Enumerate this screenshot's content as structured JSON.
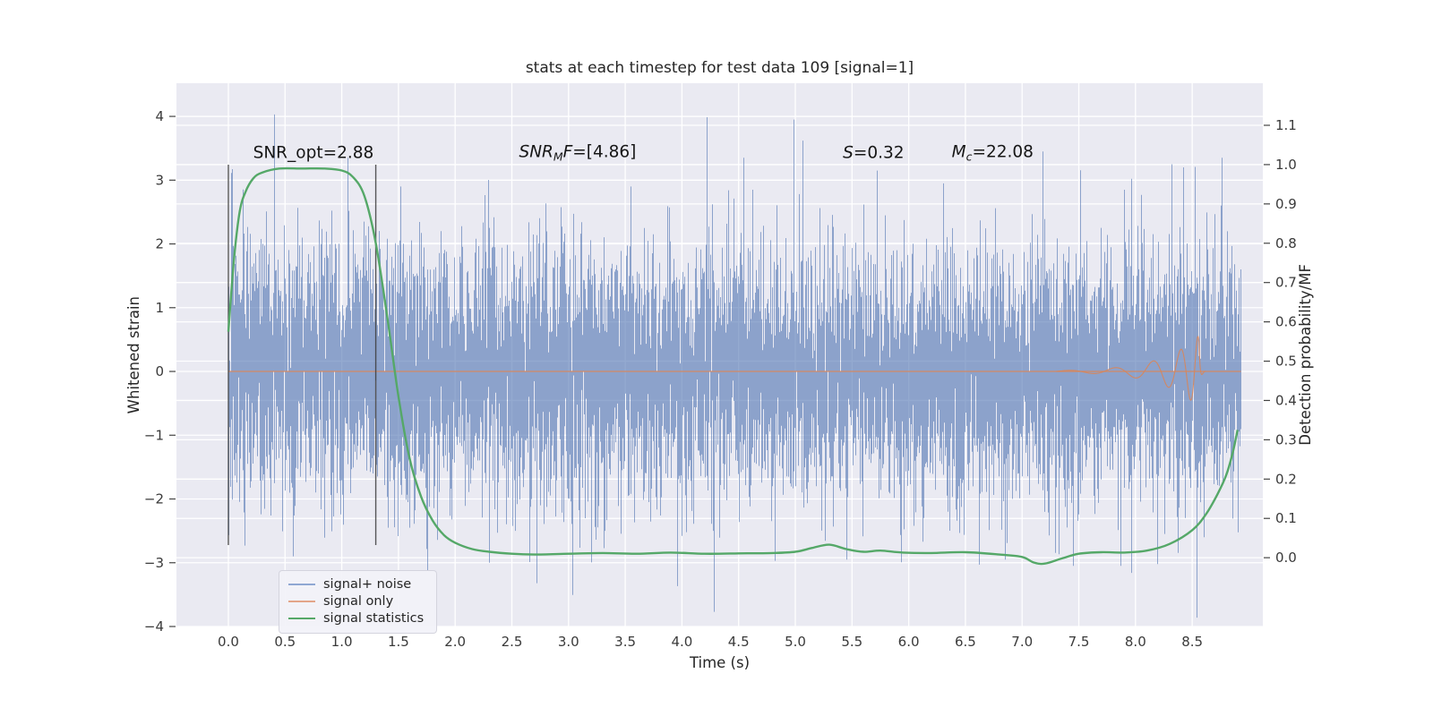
{
  "title": "stats at each timestep for test data 109 [signal=1]",
  "colors": {
    "figure_bg": "#ffffff",
    "axes_bg": "#eaeaf2",
    "grid": "#ffffff",
    "text": "#262626",
    "tick_text": "#3a3a3a",
    "noise_line": "#4c72b0",
    "signal_line": "#dd8452",
    "stats_line": "#55a868",
    "vline": "#3c3c3c"
  },
  "axes": {
    "x": {
      "label": "Time (s)",
      "min": -0.458,
      "max": 9.123,
      "ticks": [
        0.0,
        0.5,
        1.0,
        1.5,
        2.0,
        2.5,
        3.0,
        3.5,
        4.0,
        4.5,
        5.0,
        5.5,
        6.0,
        6.5,
        7.0,
        7.5,
        8.0,
        8.5
      ]
    },
    "y_left": {
      "label": "Whitened strain",
      "min": -4.0,
      "max": 4.52,
      "ticks": [
        -4,
        -3,
        -2,
        -1,
        0,
        1,
        2,
        3,
        4
      ]
    },
    "y_right": {
      "label": "Detection probability/MF",
      "min": -0.175,
      "max": 1.207,
      "ticks": [
        0.0,
        0.1,
        0.2,
        0.3,
        0.4,
        0.5,
        0.6,
        0.7,
        0.8,
        0.9,
        1.0,
        1.1
      ]
    }
  },
  "chart_data": {
    "type": "line",
    "title": "stats at each timestep for test data 109 [signal=1]",
    "xlabel": "Time (s)",
    "ylabel_left": "Whitened strain",
    "ylabel_right": "Detection probability/MF",
    "grid": true,
    "series": [
      {
        "name": "signal+ noise",
        "axis": "left",
        "kind": "noise_band",
        "color": "#4c72b0",
        "alpha": 0.6,
        "t_start": 0.0,
        "t_end": 8.93,
        "sigma": 0.95,
        "samples_per_pixel": 7,
        "seed": 20240109,
        "spikes": [
          [
            0.4,
            4.03
          ],
          [
            0.57,
            -2.9
          ],
          [
            1.05,
            3.35
          ],
          [
            1.52,
            2.9
          ],
          [
            2.3,
            -3.0
          ],
          [
            2.72,
            -3.32
          ],
          [
            3.55,
            2.9
          ],
          [
            4.28,
            -3.77
          ],
          [
            4.62,
            2.85
          ],
          [
            5.06,
            3.62
          ],
          [
            5.45,
            -2.95
          ],
          [
            5.72,
            3.15
          ],
          [
            6.3,
            2.95
          ],
          [
            6.85,
            -2.95
          ],
          [
            7.45,
            -3.05
          ],
          [
            7.9,
            2.85
          ],
          [
            8.32,
            3.25
          ],
          [
            8.42,
            3.2
          ],
          [
            8.6,
            -2.6
          ],
          [
            8.75,
            2.6
          ]
        ]
      },
      {
        "name": "signal only",
        "axis": "left",
        "kind": "chirp",
        "color": "#dd8452",
        "alpha": 0.85,
        "t_start": 0.0,
        "t_end": 8.93,
        "baseline": 0.0,
        "chirp_start": 7.3,
        "merger_time": 8.56,
        "start_amplitude": 0.012,
        "peak_amplitude": 0.56,
        "amp_efold": 0.327,
        "ringdown": 0.012
      },
      {
        "name": "signal statistics",
        "axis": "right",
        "kind": "curve",
        "color": "#55a868",
        "points": [
          [
            0,
            0.575
          ],
          [
            0.05,
            0.76
          ],
          [
            0.1,
            0.88
          ],
          [
            0.15,
            0.93
          ],
          [
            0.22,
            0.965
          ],
          [
            0.3,
            0.98
          ],
          [
            0.45,
            0.99
          ],
          [
            0.65,
            0.99
          ],
          [
            0.85,
            0.99
          ],
          [
            1.0,
            0.985
          ],
          [
            1.1,
            0.968
          ],
          [
            1.2,
            0.92
          ],
          [
            1.3,
            0.8
          ],
          [
            1.4,
            0.615
          ],
          [
            1.5,
            0.41
          ],
          [
            1.6,
            0.25
          ],
          [
            1.7,
            0.155
          ],
          [
            1.8,
            0.095
          ],
          [
            1.9,
            0.058
          ],
          [
            2.0,
            0.038
          ],
          [
            2.15,
            0.022
          ],
          [
            2.3,
            0.015
          ],
          [
            2.5,
            0.01
          ],
          [
            2.7,
            0.008
          ],
          [
            3.0,
            0.01
          ],
          [
            3.3,
            0.012
          ],
          [
            3.6,
            0.01
          ],
          [
            3.9,
            0.013
          ],
          [
            4.2,
            0.01
          ],
          [
            4.5,
            0.011
          ],
          [
            4.8,
            0.012
          ],
          [
            5.0,
            0.015
          ],
          [
            5.15,
            0.025
          ],
          [
            5.3,
            0.033
          ],
          [
            5.45,
            0.022
          ],
          [
            5.6,
            0.015
          ],
          [
            5.75,
            0.018
          ],
          [
            5.95,
            0.013
          ],
          [
            6.2,
            0.012
          ],
          [
            6.5,
            0.014
          ],
          [
            6.8,
            0.008
          ],
          [
            7.0,
            0.002
          ],
          [
            7.1,
            -0.012
          ],
          [
            7.2,
            -0.015
          ],
          [
            7.35,
            -0.002
          ],
          [
            7.5,
            0.01
          ],
          [
            7.7,
            0.014
          ],
          [
            7.9,
            0.013
          ],
          [
            8.1,
            0.018
          ],
          [
            8.3,
            0.035
          ],
          [
            8.5,
            0.07
          ],
          [
            8.62,
            0.11
          ],
          [
            8.72,
            0.16
          ],
          [
            8.8,
            0.21
          ],
          [
            8.86,
            0.27
          ],
          [
            8.9,
            0.325
          ]
        ]
      }
    ],
    "vlines": [
      {
        "t": 0.0,
        "ymin_frac": 0.15,
        "ymax_frac": 0.85
      },
      {
        "t": 1.3,
        "ymin_frac": 0.15,
        "ymax_frac": 0.85
      }
    ],
    "annotations": [
      {
        "id": "snr-opt",
        "t": 0.75,
        "s": 3.42,
        "parts": [
          {
            "text": "SNR_opt=2.88",
            "italic": false,
            "sub": false
          }
        ]
      },
      {
        "id": "snr-mf",
        "t": 3.08,
        "s": 3.42,
        "parts": [
          {
            "text": "SNR",
            "italic": true,
            "sub": false
          },
          {
            "text": "M",
            "italic": true,
            "sub": true
          },
          {
            "text": "F",
            "italic": true,
            "sub": false
          },
          {
            "text": "=[4.86]",
            "italic": false,
            "sub": false
          }
        ]
      },
      {
        "id": "s-stat",
        "t": 5.69,
        "s": 3.42,
        "parts": [
          {
            "text": "S",
            "italic": true,
            "sub": false
          },
          {
            "text": "=0.32",
            "italic": false,
            "sub": false
          }
        ]
      },
      {
        "id": "chirp-mass",
        "t": 6.74,
        "s": 3.42,
        "parts": [
          {
            "text": "M",
            "italic": true,
            "sub": false
          },
          {
            "text": "c",
            "italic": true,
            "sub": true
          },
          {
            "text": "=22.08",
            "italic": false,
            "sub": false
          }
        ]
      }
    ],
    "legend": {
      "position": "lower left",
      "entries": [
        {
          "label": "signal+ noise",
          "color": "#8fa7d3"
        },
        {
          "label": "signal only",
          "color": "#e3a589"
        },
        {
          "label": "signal statistics",
          "color": "#55a868"
        }
      ]
    }
  }
}
